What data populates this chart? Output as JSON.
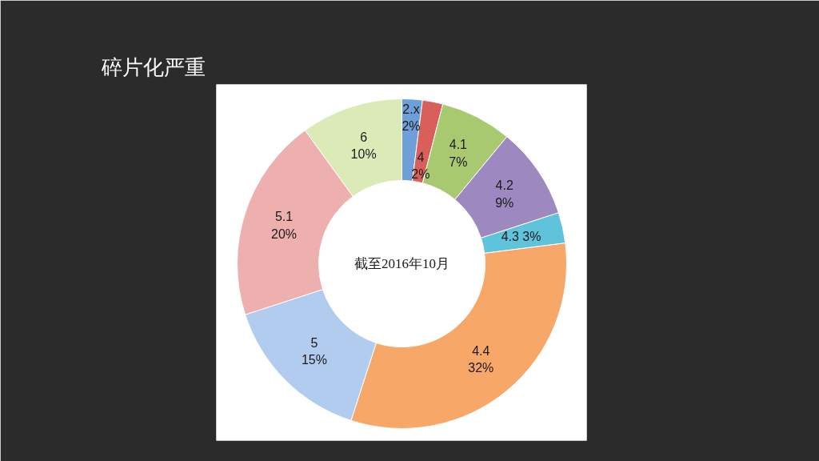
{
  "chart_data": {
    "type": "donut",
    "title": "碎片化严重",
    "categories": [
      "2.x",
      "4",
      "4.1",
      "4.2",
      "4.3",
      "4.4",
      "5",
      "5.1",
      "6"
    ],
    "values": [
      2,
      2,
      7,
      9,
      3,
      32,
      15,
      20,
      10
    ],
    "colors": [
      "#6f9fd8",
      "#d9605a",
      "#a9c970",
      "#9e88c0",
      "#5fc3dc",
      "#f7a868",
      "#b2ccef",
      "#eeafaf",
      "#dceab8"
    ],
    "value_labels": [
      "2%",
      "2%",
      "7%",
      "9%",
      "3%",
      "32%",
      "15%",
      "20%",
      "10%"
    ],
    "annotations": [
      "截至2016年10月"
    ]
  }
}
